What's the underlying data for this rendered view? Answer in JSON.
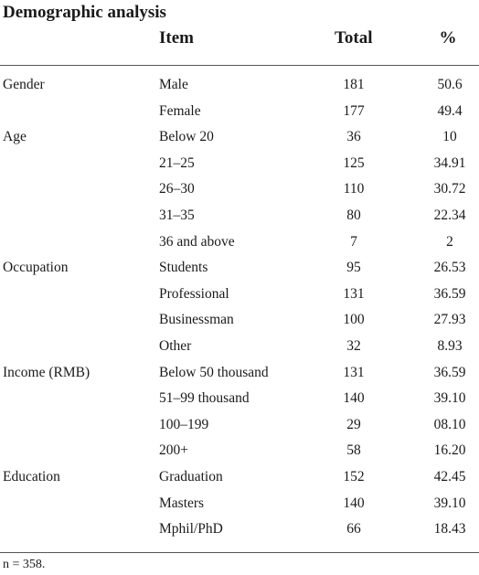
{
  "title": "Demographic analysis",
  "headers": {
    "item": "Item",
    "total": "Total",
    "pct": "%"
  },
  "rows": [
    {
      "group": "Gender",
      "item": "Male",
      "total": "181",
      "pct": "50.6"
    },
    {
      "group": "",
      "item": "Female",
      "total": "177",
      "pct": "49.4"
    },
    {
      "group": "Age",
      "item": "Below 20",
      "total": "36",
      "pct": "10"
    },
    {
      "group": "",
      "item": "21–25",
      "total": "125",
      "pct": "34.91"
    },
    {
      "group": "",
      "item": "26–30",
      "total": "110",
      "pct": "30.72"
    },
    {
      "group": "",
      "item": "31–35",
      "total": "80",
      "pct": "22.34"
    },
    {
      "group": "",
      "item": "36 and above",
      "total": "7",
      "pct": "2"
    },
    {
      "group": "Occupation",
      "item": "Students",
      "total": "95",
      "pct": "26.53"
    },
    {
      "group": "",
      "item": "Professional",
      "total": "131",
      "pct": "36.59"
    },
    {
      "group": "",
      "item": "Businessman",
      "total": "100",
      "pct": "27.93"
    },
    {
      "group": "",
      "item": "Other",
      "total": "32",
      "pct": "8.93"
    },
    {
      "group": "Income (RMB)",
      "item": "Below 50 thousand",
      "total": "131",
      "pct": "36.59"
    },
    {
      "group": "",
      "item": "51–99 thousand",
      "total": "140",
      "pct": "39.10"
    },
    {
      "group": "",
      "item": "100–199",
      "total": "29",
      "pct": "08.10"
    },
    {
      "group": "",
      "item": "200+",
      "total": "58",
      "pct": "16.20"
    },
    {
      "group": "Education",
      "item": "Graduation",
      "total": "152",
      "pct": "42.45"
    },
    {
      "group": "",
      "item": "Masters",
      "total": "140",
      "pct": "39.10"
    },
    {
      "group": "",
      "item": "Mphil/PhD",
      "total": "66",
      "pct": "18.43"
    }
  ],
  "footnote": "n = 358."
}
